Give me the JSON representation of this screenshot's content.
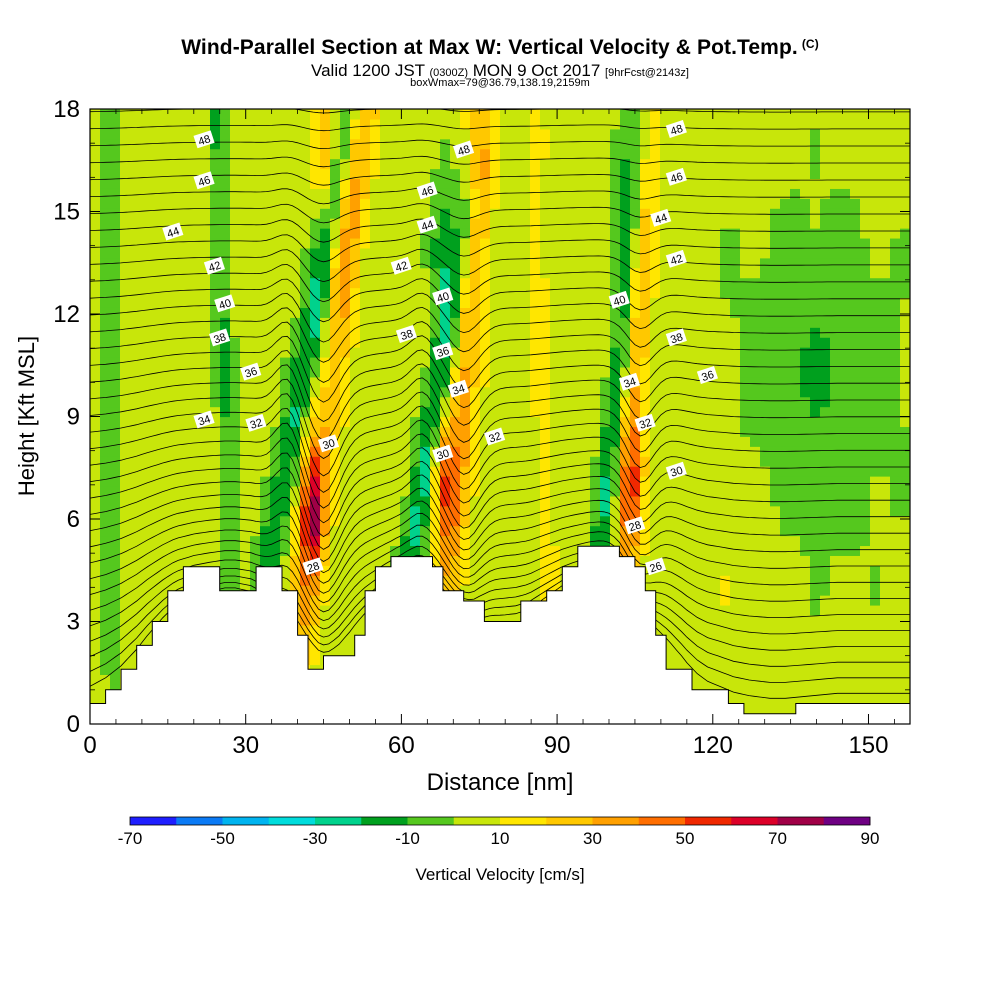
{
  "header": {
    "title": "Wind-Parallel Section at Max W: Vertical Velocity & Pot.Temp.",
    "copyright": "(C)",
    "valid_prefix": "Valid 1200 JST",
    "valid_utc": "(0300Z)",
    "valid_date": "MON 9 Oct 2017",
    "forecast": "[9hrFcst@2143z]",
    "box_info": "boxWmax=79@36.79,138.19,2159m"
  },
  "chart_data": {
    "type": "cross-section-contour",
    "xlabel": "Distance [nm]",
    "ylabel": "Height [Kft MSL]",
    "xlim": [
      0,
      158
    ],
    "ylim": [
      0,
      18
    ],
    "x_ticks": [
      0,
      30,
      60,
      90,
      120,
      150
    ],
    "y_ticks": [
      0,
      3,
      6,
      9,
      12,
      15,
      18
    ],
    "fill_variable": "Vertical Velocity [cm/s]",
    "colorbar": {
      "label": "Vertical Velocity [cm/s]",
      "boundaries": [
        -70,
        -60,
        -50,
        -40,
        -30,
        -20,
        -10,
        0,
        10,
        20,
        30,
        40,
        50,
        60,
        70,
        80,
        90
      ],
      "tick_labels": [
        "-70",
        "-50",
        "-30",
        "-10",
        "10",
        "30",
        "50",
        "70",
        "90"
      ],
      "colors": [
        "#1e1eff",
        "#0a7af5",
        "#00b4f0",
        "#00dcdc",
        "#00d28c",
        "#00a01e",
        "#55c81e",
        "#c8e60a",
        "#ffe600",
        "#ffc800",
        "#ffa000",
        "#ff6e00",
        "#f02800",
        "#dc0028",
        "#a00046",
        "#6e0082"
      ]
    },
    "updraft_cores": [
      {
        "x": 43,
        "z": 6.2,
        "w": 75
      },
      {
        "x": 68,
        "z": 7.2,
        "w": 60
      },
      {
        "x": 75,
        "z": 17.0,
        "w": 45
      },
      {
        "x": 45,
        "z": 17.0,
        "w": 40
      },
      {
        "x": 104,
        "z": 7.0,
        "w": 42
      }
    ],
    "downdraft_cores": [
      {
        "x": 45,
        "z": 10.5,
        "w": -40
      },
      {
        "x": 68,
        "z": 14.0,
        "w": -38
      },
      {
        "x": 103,
        "z": 16.0,
        "w": -30
      }
    ],
    "terrain_height_kft": [
      [
        0,
        0.6
      ],
      [
        3,
        0.6
      ],
      [
        3,
        1.0
      ],
      [
        6,
        1.0
      ],
      [
        6,
        1.6
      ],
      [
        9,
        1.6
      ],
      [
        9,
        2.3
      ],
      [
        12,
        2.3
      ],
      [
        12,
        3.0
      ],
      [
        15,
        3.0
      ],
      [
        15,
        3.9
      ],
      [
        18,
        3.9
      ],
      [
        18,
        4.6
      ],
      [
        25,
        4.6
      ],
      [
        25,
        3.9
      ],
      [
        32,
        3.9
      ],
      [
        32,
        4.6
      ],
      [
        37,
        4.6
      ],
      [
        37,
        3.9
      ],
      [
        40,
        3.9
      ],
      [
        40,
        2.6
      ],
      [
        42,
        2.6
      ],
      [
        42,
        1.6
      ],
      [
        45,
        1.6
      ],
      [
        45,
        2.0
      ],
      [
        51,
        2.0
      ],
      [
        51,
        2.6
      ],
      [
        53,
        2.6
      ],
      [
        53,
        3.9
      ],
      [
        55,
        3.9
      ],
      [
        55,
        4.6
      ],
      [
        58,
        4.6
      ],
      [
        58,
        4.9
      ],
      [
        66,
        4.9
      ],
      [
        66,
        4.6
      ],
      [
        68,
        4.6
      ],
      [
        68,
        3.9
      ],
      [
        72,
        3.9
      ],
      [
        72,
        3.6
      ],
      [
        76,
        3.6
      ],
      [
        76,
        3.0
      ],
      [
        83,
        3.0
      ],
      [
        83,
        3.6
      ],
      [
        88,
        3.6
      ],
      [
        88,
        3.9
      ],
      [
        91,
        3.9
      ],
      [
        91,
        4.6
      ],
      [
        94,
        4.6
      ],
      [
        94,
        5.2
      ],
      [
        99,
        5.2
      ],
      [
        99,
        5.2
      ],
      [
        102,
        5.2
      ],
      [
        102,
        4.9
      ],
      [
        105,
        4.9
      ],
      [
        105,
        4.6
      ],
      [
        107,
        4.6
      ],
      [
        107,
        3.9
      ],
      [
        109,
        3.9
      ],
      [
        109,
        2.6
      ],
      [
        111,
        2.6
      ],
      [
        111,
        1.6
      ],
      [
        116,
        1.6
      ],
      [
        116,
        1.0
      ],
      [
        123,
        1.0
      ],
      [
        123,
        0.6
      ],
      [
        126,
        0.6
      ],
      [
        126,
        0.3
      ],
      [
        136,
        0.3
      ],
      [
        136,
        0.6
      ],
      [
        158,
        0.6
      ]
    ],
    "isentrope_labels": [
      {
        "text": "48",
        "x": 22,
        "z": 17.1
      },
      {
        "text": "46",
        "x": 22,
        "z": 15.9
      },
      {
        "text": "44",
        "x": 16,
        "z": 14.4
      },
      {
        "text": "42",
        "x": 24,
        "z": 13.4
      },
      {
        "text": "40",
        "x": 26,
        "z": 12.3
      },
      {
        "text": "38",
        "x": 25,
        "z": 11.3
      },
      {
        "text": "36",
        "x": 31,
        "z": 10.3
      },
      {
        "text": "34",
        "x": 22,
        "z": 8.9
      },
      {
        "text": "32",
        "x": 32,
        "z": 8.8
      },
      {
        "text": "30",
        "x": 46,
        "z": 8.2
      },
      {
        "text": "28",
        "x": 43,
        "z": 4.6
      },
      {
        "text": "48",
        "x": 72,
        "z": 16.8
      },
      {
        "text": "46",
        "x": 65,
        "z": 15.6
      },
      {
        "text": "44",
        "x": 65,
        "z": 14.6
      },
      {
        "text": "42",
        "x": 60,
        "z": 13.4
      },
      {
        "text": "40",
        "x": 68,
        "z": 12.5
      },
      {
        "text": "38",
        "x": 61,
        "z": 11.4
      },
      {
        "text": "36",
        "x": 68,
        "z": 10.9
      },
      {
        "text": "34",
        "x": 71,
        "z": 9.8
      },
      {
        "text": "32",
        "x": 78,
        "z": 8.4
      },
      {
        "text": "30",
        "x": 68,
        "z": 7.9
      },
      {
        "text": "48",
        "x": 113,
        "z": 17.4
      },
      {
        "text": "46",
        "x": 113,
        "z": 16.0
      },
      {
        "text": "44",
        "x": 110,
        "z": 14.8
      },
      {
        "text": "42",
        "x": 113,
        "z": 13.6
      },
      {
        "text": "40",
        "x": 102,
        "z": 12.4
      },
      {
        "text": "38",
        "x": 113,
        "z": 11.3
      },
      {
        "text": "36",
        "x": 119,
        "z": 10.2
      },
      {
        "text": "34",
        "x": 104,
        "z": 10.0
      },
      {
        "text": "32",
        "x": 107,
        "z": 8.8
      },
      {
        "text": "30",
        "x": 113,
        "z": 7.4
      },
      {
        "text": "28",
        "x": 105,
        "z": 5.8
      },
      {
        "text": "26",
        "x": 109,
        "z": 4.6
      }
    ]
  }
}
